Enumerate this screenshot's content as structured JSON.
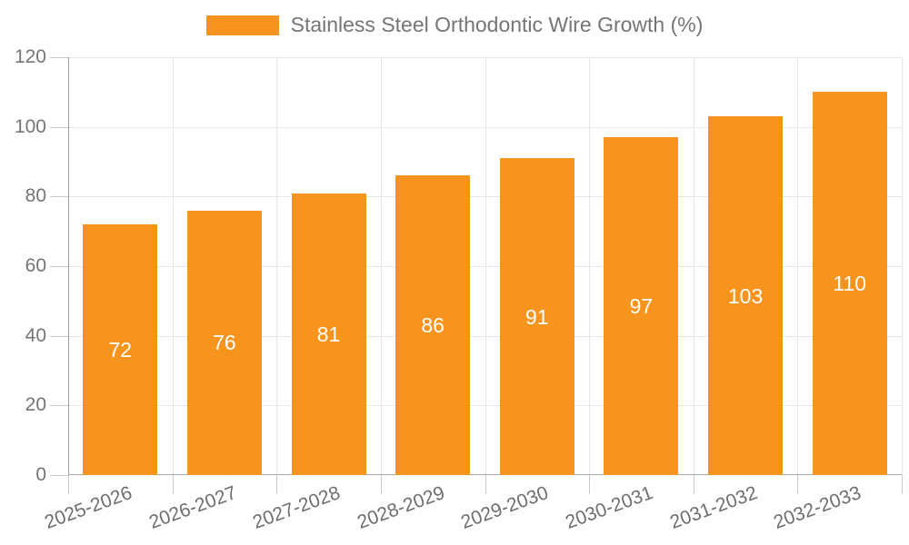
{
  "chart_data": {
    "type": "bar",
    "title": "Stainless Steel Orthodontic Wire Growth (%)",
    "categories": [
      "2025-2026",
      "2026-2027",
      "2027-2028",
      "2028-2029",
      "2029-2030",
      "2030-2031",
      "2031-2032",
      "2032-2033"
    ],
    "values": [
      72,
      76,
      81,
      86,
      91,
      97,
      103,
      110
    ],
    "xlabel": "",
    "ylabel": "",
    "ylim": [
      0,
      120
    ],
    "yticks": [
      0,
      20,
      40,
      60,
      80,
      100,
      120
    ],
    "grid": true,
    "legend_position": "top-center",
    "value_labels": "centered-inside-bars",
    "x_label_rotation_deg": -20,
    "colors": {
      "bar": "#F7941E",
      "value_label": "#ffffff",
      "axis_label": "#757575",
      "gridline": "#e7e7e7",
      "axis_line": "#9e9e9e",
      "tick": "#c9c9c9",
      "background": "#ffffff"
    }
  }
}
